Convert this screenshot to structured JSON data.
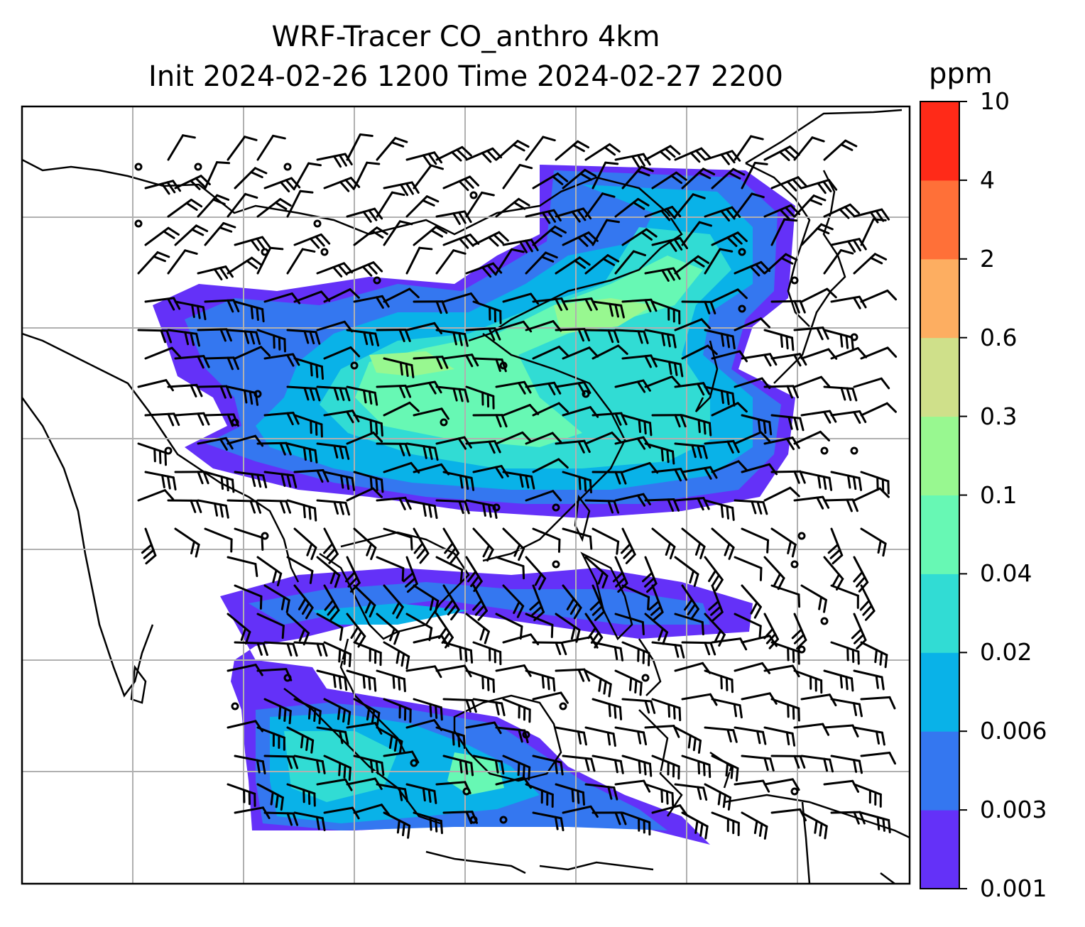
{
  "title_line1": "WRF-Tracer CO_anthro 4km",
  "title_line2": "Init 2024-02-26 1200 Time 2024-02-27 2200",
  "colorbar": {
    "unit": "ppm",
    "levels": [
      "0.001",
      "0.003",
      "0.006",
      "0.02",
      "0.04",
      "0.1",
      "0.3",
      "0.6",
      "2",
      "4",
      "10"
    ],
    "colors": [
      "#6431f8",
      "#3477f0",
      "#09b2e8",
      "#31dcd4",
      "#67f8b4",
      "#98f890",
      "#cfe08a",
      "#fdae61",
      "#ff7038",
      "#ff2a18"
    ]
  },
  "map": {
    "gridline_color": "#b0b0b0",
    "coastline_color": "#000000",
    "wind_barb_color": "#000000",
    "calm_marker": "circle"
  }
}
